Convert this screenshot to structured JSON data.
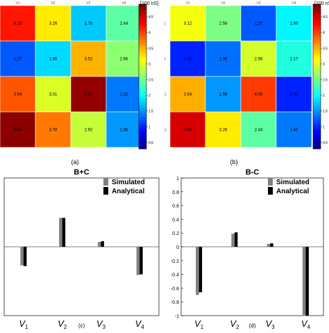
{
  "chart_data": [
    {
      "type": "heatmap",
      "panel_label": "(a)",
      "colorbar_unit": "[100 nS]",
      "colorbar_ticks": [
        "4.5",
        "4",
        "3.5",
        "3",
        "2.5",
        "2",
        "1.5",
        "1",
        "0.5"
      ],
      "colorbar_range": [
        0.3,
        4.9
      ],
      "col_labels": [
        "V1",
        "V2",
        "V3",
        "V4"
      ],
      "row_labels": [
        "V1",
        "V2",
        "V3",
        "V4"
      ],
      "values": [
        [
          4.23,
          3.26,
          1.78,
          2.44
        ],
        [
          1.27,
          1.86,
          3.52,
          2.66
        ],
        [
          3.94,
          3.01,
          4.81,
          1.42
        ],
        [
          4.84,
          3.78,
          2.92,
          1.56
        ]
      ]
    },
    {
      "type": "heatmap",
      "panel_label": "(b)",
      "colorbar_unit": "[100 nS]",
      "colorbar_ticks": [
        "4.5",
        "4",
        "3.5",
        "3",
        "2.5",
        "2",
        "1.5",
        "1",
        "0.5"
      ],
      "colorbar_range": [
        0.3,
        4.9
      ],
      "col_labels": [
        "V1",
        "V2",
        "V3",
        "V4"
      ],
      "row_labels": [
        "V1",
        "V2",
        "V3",
        "V4"
      ],
      "values": [
        [
          3.12,
          2.58,
          1.27,
          1.99
        ],
        [
          1.03,
          1.38,
          2.98,
          2.17
        ],
        [
          3.54,
          1.56,
          4.06,
          1.03
        ],
        [
          4.5,
          3.26,
          2.44,
          1.42
        ]
      ]
    },
    {
      "type": "bar",
      "panel_label": "(c)",
      "title": "B+C",
      "categories": [
        "V1",
        "V2",
        "V3",
        "V4"
      ],
      "ylim": [
        -1,
        1
      ],
      "yticks": [],
      "series": [
        {
          "name": "Simulated",
          "color": "#808080",
          "values": [
            -0.27,
            0.42,
            0.07,
            -0.41
          ]
        },
        {
          "name": "Analytical",
          "color": "#000000",
          "values": [
            -0.28,
            0.42,
            0.08,
            -0.4
          ]
        }
      ],
      "legend": "top-right"
    },
    {
      "type": "bar",
      "panel_label": "(d)",
      "title": "B-C",
      "categories": [
        "V1",
        "V2",
        "V3",
        "V4"
      ],
      "ylim": [
        -1,
        1
      ],
      "yticks": [
        "1",
        "0.8",
        "0.6",
        "0.4",
        "0.2",
        "0",
        "-0.2",
        "-0.4",
        "-0.6",
        "-0.8",
        "-1"
      ],
      "series": [
        {
          "name": "Simulated",
          "color": "#808080",
          "values": [
            -0.7,
            0.19,
            0.04,
            -0.99
          ]
        },
        {
          "name": "Analytical",
          "color": "#000000",
          "values": [
            -0.66,
            0.21,
            0.05,
            -1.0
          ]
        }
      ],
      "legend": "top-right"
    }
  ]
}
